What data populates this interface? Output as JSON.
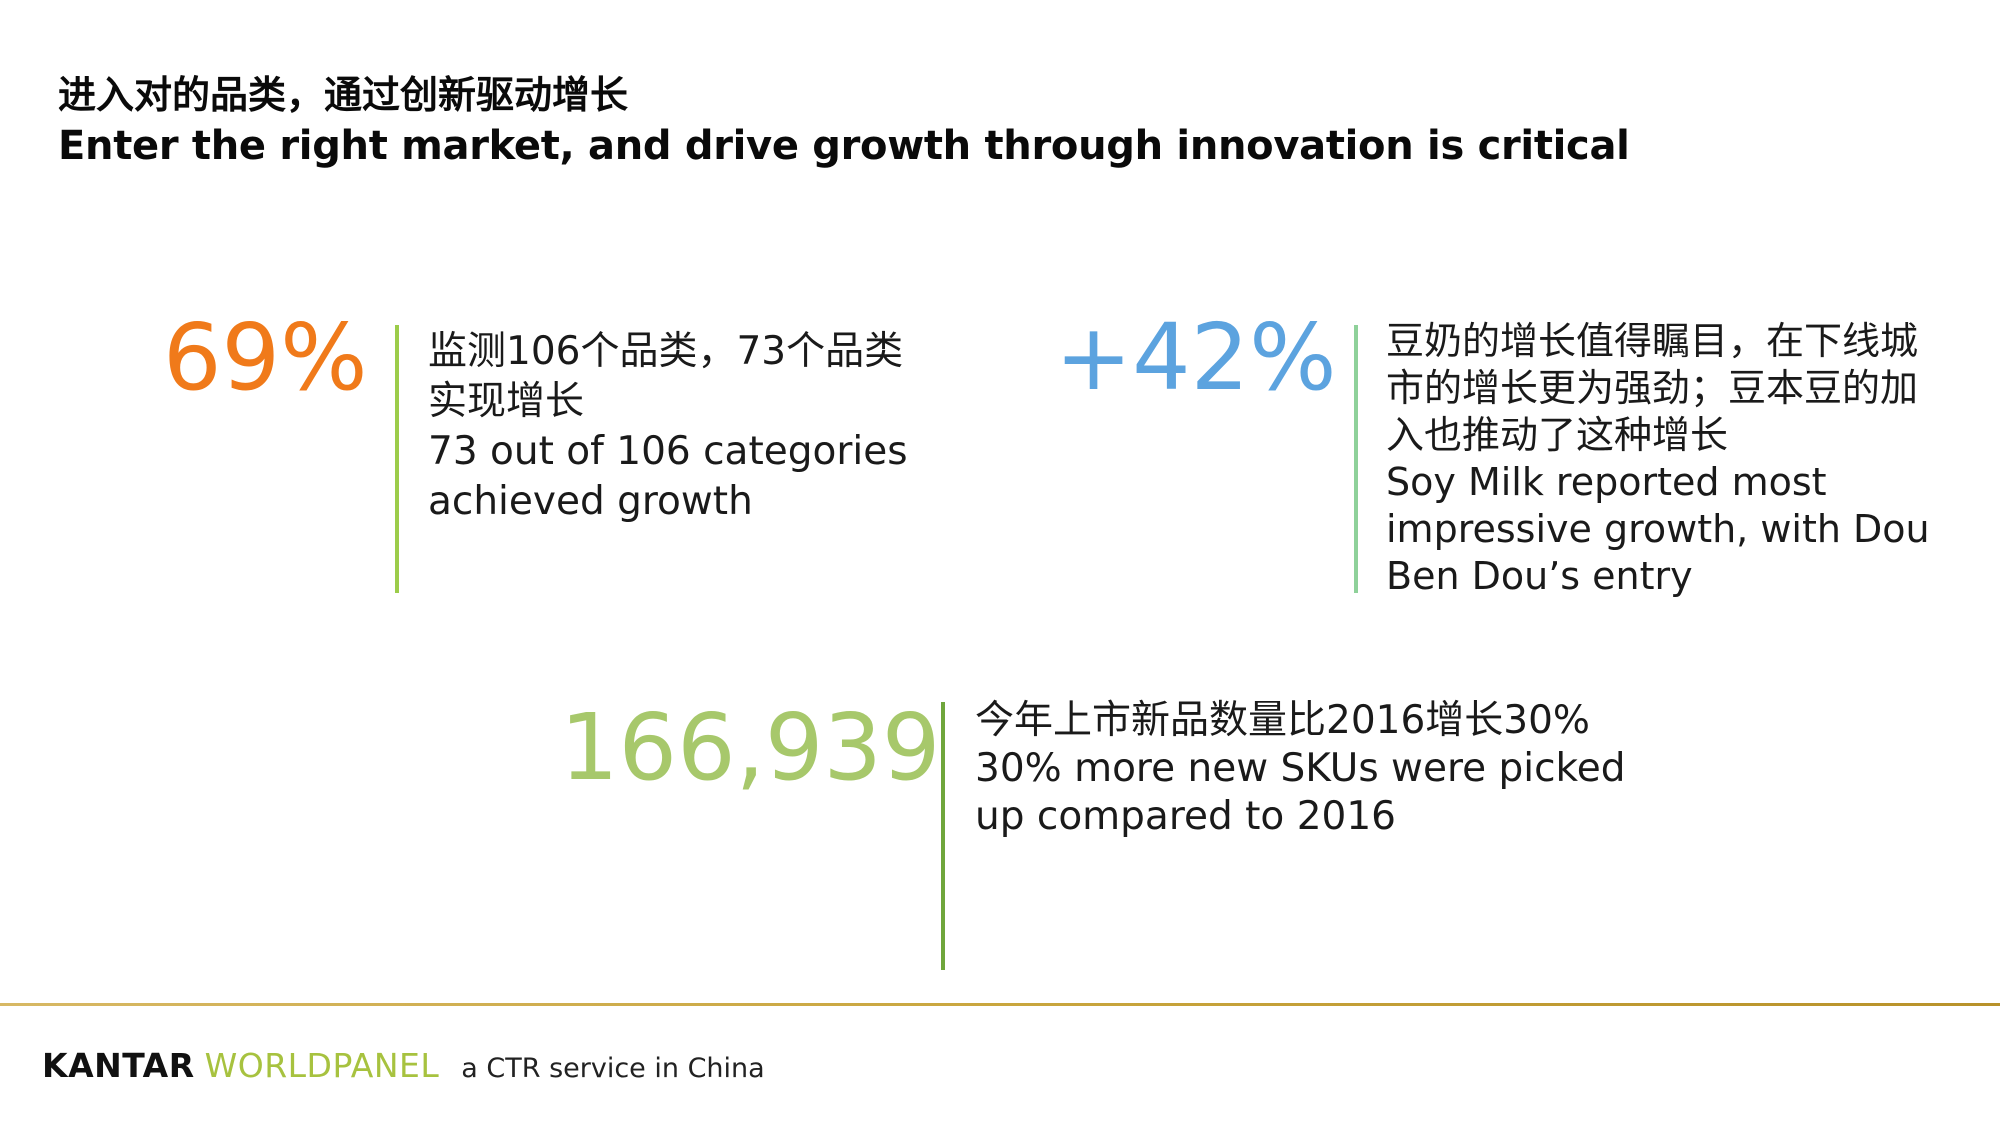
{
  "title": {
    "zh": "进入对的品类，通过创新驱动增长",
    "en": "Enter the right market, and drive growth through innovation is critical"
  },
  "colors": {
    "orange": "#f07a1a",
    "blue": "#5ca3df",
    "green": "#a7c86b",
    "bar_light_green": "#9ccc4a",
    "bar_dark_green": "#6fa63c"
  },
  "stats": [
    {
      "value": "69%",
      "lines": [
        "监测106个品类，73个品类",
        "实现增长",
        "73 out of 106 categories",
        "achieved growth"
      ]
    },
    {
      "value": "+42%",
      "lines": [
        "豆奶的增长值得瞩目，在下线城",
        "市的增长更为强劲；豆本豆的加",
        "入也推动了这种增长",
        "Soy Milk reported most",
        "impressive growth, with Dou",
        "Ben Dou’s entry"
      ]
    },
    {
      "value": "166,939",
      "lines": [
        "今年上市新品数量比2016增长30%",
        "30% more new SKUs were picked",
        "up compared to 2016"
      ]
    }
  ],
  "footer": {
    "brand_primary": "KANTAR",
    "brand_secondary": "WORLDPANEL",
    "tagline": "a CTR service in China"
  }
}
